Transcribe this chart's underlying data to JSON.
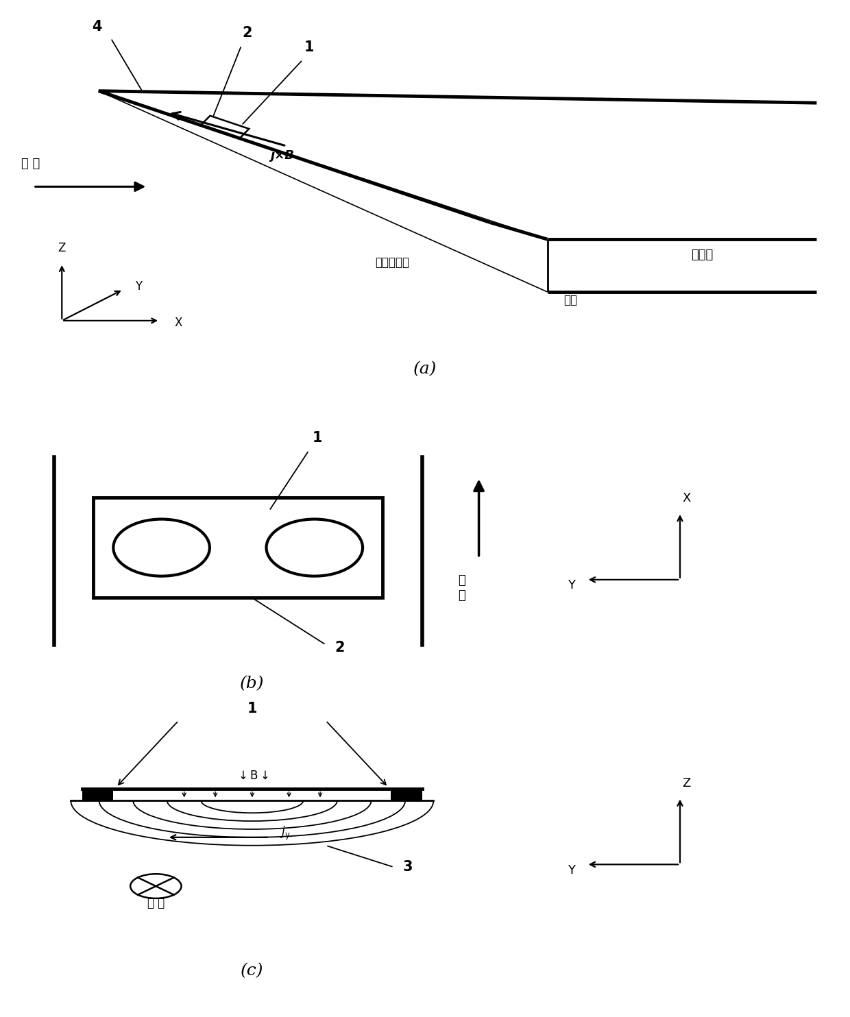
{
  "fig_width": 12.4,
  "fig_height": 14.84,
  "bg_color": "#ffffff",
  "line_color": "#000000",
  "panel_a_label": "(a)",
  "panel_b_label": "(b)",
  "panel_c_label": "(c)",
  "label_1": "1",
  "label_2": "2",
  "label_3": "3",
  "label_4": "4",
  "text_inlet_shock": "入口斜激波",
  "text_inlet": "进气道",
  "text_lip": "唇口",
  "text_flow_a": "来 流",
  "text_flow_c": "来 流",
  "text_jxB": "j×B",
  "axis_z": "Z",
  "axis_y": "Y",
  "axis_x": "X"
}
